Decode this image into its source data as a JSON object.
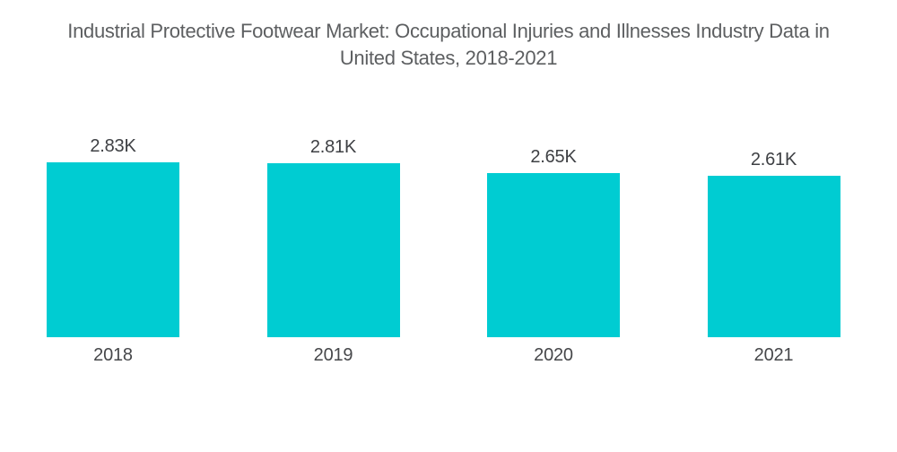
{
  "header": {
    "title_line1": "Industrial Protective Footwear Market: Occupational Injuries and Illnesses Industry Data in",
    "title_line2": "United States, 2018-2021"
  },
  "colors": {
    "bar": "#00ccd2",
    "title_text": "#5d5f61",
    "value_label_text": "#3e4044",
    "category_label_text": "#46474a",
    "background": "#ffffff"
  },
  "chart_data": {
    "type": "bar",
    "title": "Industrial Protective Footwear Market: Occupational Injuries and Illnesses Industry Data in United States, 2018-2021",
    "categories": [
      "2018",
      "2019",
      "2020",
      "2021"
    ],
    "values": [
      2830,
      2810,
      2650,
      2610
    ],
    "value_labels": [
      "2.83K",
      "2.81K",
      "2.65K",
      "2.61K"
    ],
    "unit": "K",
    "xlabel": "",
    "ylabel": "",
    "ylim": [
      0,
      2830
    ],
    "grid": false,
    "legend": false,
    "axes_visible": false,
    "bar_label_position": "above"
  }
}
